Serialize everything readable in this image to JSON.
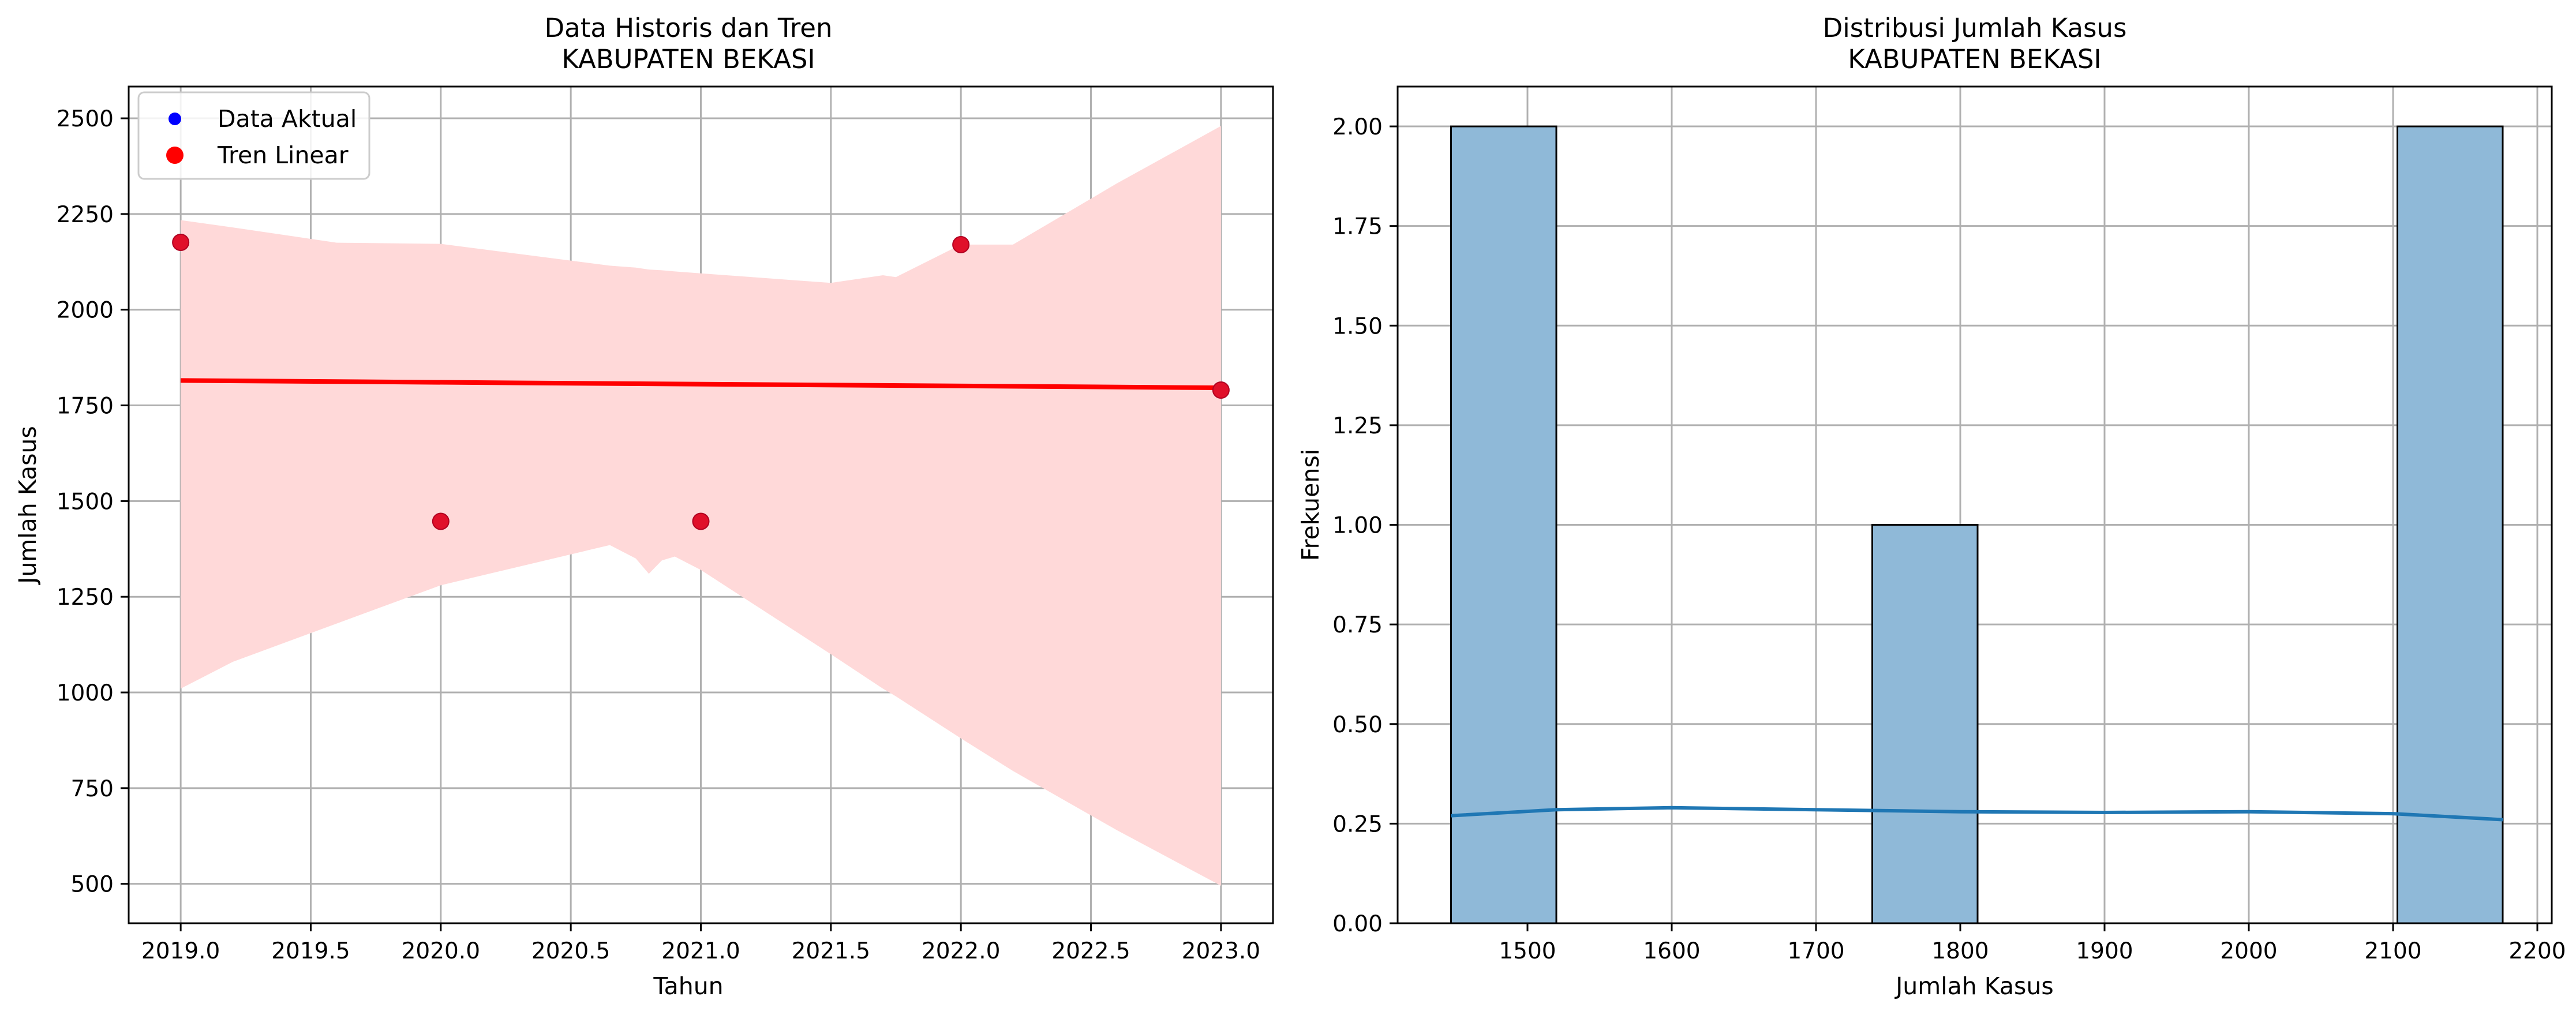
{
  "chart_data": [
    {
      "type": "scatter",
      "title": "Data Historis dan Tren",
      "subtitle": "KABUPATEN BEKASI",
      "xlabel": "Tahun",
      "ylabel": "Jumlah Kasus",
      "xlim": [
        2018.8,
        2023.2
      ],
      "ylim": [
        397,
        2583
      ],
      "xticks": [
        2019.0,
        2019.5,
        2020.0,
        2020.5,
        2021.0,
        2021.5,
        2022.0,
        2022.5,
        2023.0
      ],
      "xtick_labels": [
        "2019.0",
        "2019.5",
        "2020.0",
        "2020.5",
        "2021.0",
        "2021.5",
        "2022.0",
        "2022.5",
        "2023.0"
      ],
      "yticks": [
        500,
        750,
        1000,
        1250,
        1500,
        1750,
        2000,
        2250,
        2500
      ],
      "ytick_labels": [
        "500",
        "750",
        "1000",
        "1250",
        "1500",
        "1750",
        "2000",
        "2250",
        "2500"
      ],
      "grid": true,
      "legend_position": "top-left",
      "legend": [
        {
          "label": "Data Aktual",
          "color": "#0000ff",
          "marker": "dot"
        },
        {
          "label": "Tren Linear",
          "color": "#ff0000",
          "marker": "dot"
        }
      ],
      "points": {
        "x": [
          2019,
          2020,
          2021,
          2022,
          2023
        ],
        "y": [
          2176,
          1447,
          1447,
          2170,
          1790
        ],
        "color": "#ff0000"
      },
      "trend_line": {
        "x": [
          2019,
          2023
        ],
        "y": [
          1815,
          1796
        ],
        "color": "#ff0000"
      },
      "confidence_band": {
        "x": [
          2019,
          2019.2,
          2019.6,
          2020.0,
          2020.65,
          2020.75,
          2020.8,
          2020.85,
          2020.9,
          2021.0,
          2021.5,
          2021.7,
          2021.75,
          2022.0,
          2022.2,
          2022.6,
          2023.0
        ],
        "upper": [
          2234,
          2215,
          2175,
          2172,
          2115,
          2110,
          2105,
          2103,
          2100,
          2095,
          2070,
          2090,
          2085,
          2170,
          2170,
          2330,
          2480
        ],
        "lower": [
          1010,
          1080,
          1180,
          1280,
          1385,
          1350,
          1310,
          1345,
          1355,
          1320,
          1100,
          1010,
          990,
          880,
          795,
          640,
          495
        ],
        "color": "#ffd9d9"
      }
    },
    {
      "type": "histogram",
      "title": "Distribusi Jumlah Kasus",
      "subtitle": "KABUPATEN BEKASI",
      "xlabel": "Jumlah Kasus",
      "ylabel": "Frekuensi",
      "xlim": [
        1410,
        2210
      ],
      "ylim": [
        0,
        2.1
      ],
      "xticks": [
        1500,
        1600,
        1700,
        1800,
        1900,
        2000,
        2100,
        2200
      ],
      "xtick_labels": [
        "1500",
        "1600",
        "1700",
        "1800",
        "1900",
        "2000",
        "2100",
        "2200"
      ],
      "yticks": [
        0,
        0.25,
        0.5,
        0.75,
        1.0,
        1.25,
        1.5,
        1.75,
        2.0
      ],
      "ytick_labels": [
        "0.00",
        "0.25",
        "0.50",
        "0.75",
        "1.00",
        "1.25",
        "1.50",
        "1.75",
        "2.00"
      ],
      "grid": true,
      "bars": [
        {
          "x0": 1447,
          "x1": 1520,
          "count": 2
        },
        {
          "x0": 1739,
          "x1": 1812,
          "count": 1
        },
        {
          "x0": 2103,
          "x1": 2176,
          "count": 2
        }
      ],
      "bar_color": "#8fb9d8",
      "kde": {
        "x": [
          1447,
          1520,
          1600,
          1700,
          1800,
          1900,
          2000,
          2100,
          2176
        ],
        "y": [
          0.27,
          0.285,
          0.29,
          0.285,
          0.28,
          0.278,
          0.28,
          0.275,
          0.26
        ],
        "color": "#1f77b4"
      }
    }
  ]
}
